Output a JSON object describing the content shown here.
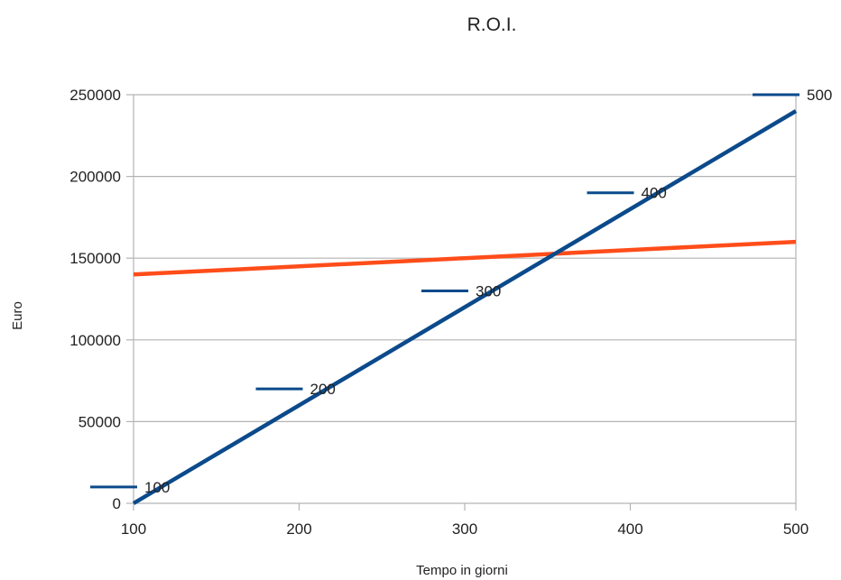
{
  "chart_data": {
    "type": "line",
    "title": "R.O.I.",
    "xlabel": "Tempo in giorni",
    "ylabel": "Euro",
    "x": [
      100,
      200,
      300,
      400,
      500
    ],
    "xlim": [
      100,
      500
    ],
    "ylim": [
      0,
      250000
    ],
    "x_ticks": [
      "100",
      "200",
      "300",
      "400",
      "500"
    ],
    "y_ticks": [
      "0",
      "50000",
      "100000",
      "150000",
      "200000",
      "250000"
    ],
    "grid": "horizontal",
    "series": [
      {
        "values": [
          0,
          60000,
          120000,
          180000,
          240000
        ],
        "color": "#0b4a8b"
      },
      {
        "values": [
          140000,
          145000,
          150000,
          155000,
          160000
        ],
        "color": "#ff4d1a"
      }
    ],
    "markers": {
      "color": "#0b4a8b",
      "points": [
        {
          "x": 100,
          "y": 10000,
          "label": "100"
        },
        {
          "x": 200,
          "y": 70000,
          "label": "200"
        },
        {
          "x": 300,
          "y": 130000,
          "label": "300"
        },
        {
          "x": 400,
          "y": 190000,
          "label": "400"
        },
        {
          "x": 500,
          "y": 250000,
          "label": "500"
        }
      ]
    }
  }
}
